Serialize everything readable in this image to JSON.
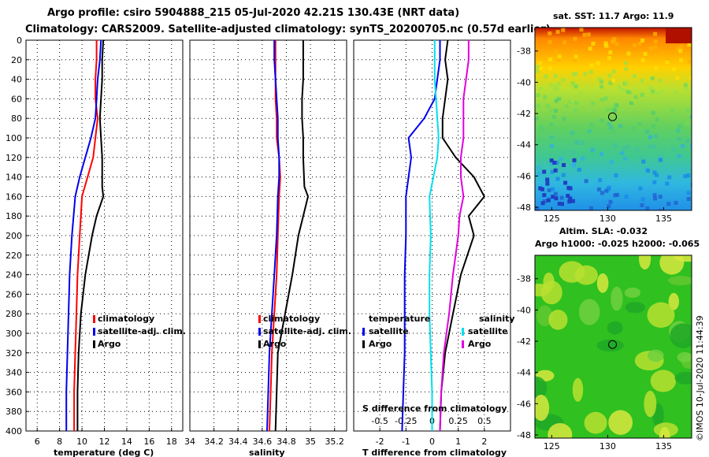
{
  "title": {
    "line1": "Argo profile: csiro 5904888_215 05-Jul-2020 42.21S 130.43E (NRT data)",
    "line2": "Climatology: CARS2009. Satellite-adjusted climatology: synTS_20200705.nc (0.57d earlier)"
  },
  "timestamp": "©IMOS 10-Jul-2020 11:44:39",
  "colors": {
    "climatology": "#ff0000",
    "satellite": "#0000ee",
    "argo": "#000000",
    "sat_salinity": "#00e0ee",
    "argo_salinity": "#e000e0"
  },
  "chart_data": [
    {
      "type": "line",
      "id": "temperature",
      "xlabel": "temperature (deg C)",
      "ylim": [
        0,
        400
      ],
      "xlim": [
        5,
        19
      ],
      "xticks": [
        "6",
        "8",
        "10",
        "12",
        "14",
        "16",
        "18"
      ],
      "xtick_values": [
        6,
        8,
        10,
        12,
        14,
        16,
        18
      ],
      "yticks": [
        "0",
        "20",
        "40",
        "60",
        "80",
        "100",
        "120",
        "140",
        "160",
        "180",
        "200",
        "220",
        "240",
        "260",
        "280",
        "300",
        "320",
        "340",
        "360",
        "380",
        "400"
      ],
      "ytick_values": [
        0,
        20,
        40,
        60,
        80,
        100,
        120,
        140,
        160,
        180,
        200,
        220,
        240,
        260,
        280,
        300,
        320,
        340,
        360,
        380,
        400
      ],
      "legend": [
        "climatology",
        "satellite-adj. clim.",
        "Argo"
      ],
      "series": [
        {
          "name": "climatology",
          "color": "#ff0000",
          "x": [
            11.3,
            11.3,
            11.2,
            11.2,
            11.4,
            11.2,
            11.0,
            10.5,
            10.0,
            9.8,
            9.6,
            9.5,
            9.4,
            9.3,
            9.3
          ],
          "y": [
            0,
            20,
            40,
            60,
            80,
            100,
            120,
            140,
            160,
            200,
            240,
            280,
            320,
            360,
            400
          ]
        },
        {
          "name": "satellite-adj. clim.",
          "color": "#0000ee",
          "x": [
            11.7,
            11.6,
            11.4,
            11.3,
            11.2,
            10.8,
            10.3,
            9.8,
            9.4,
            9.1,
            8.9,
            8.8,
            8.7,
            8.6,
            8.6
          ],
          "y": [
            0,
            20,
            40,
            60,
            80,
            100,
            120,
            140,
            160,
            200,
            240,
            280,
            320,
            360,
            400
          ]
        },
        {
          "name": "Argo",
          "color": "#000000",
          "x": [
            11.9,
            11.8,
            11.8,
            11.7,
            11.6,
            11.7,
            11.8,
            11.8,
            11.9,
            11.3,
            10.9,
            10.3,
            9.9,
            9.7,
            9.6,
            9.6
          ],
          "y": [
            0,
            20,
            40,
            60,
            80,
            100,
            120,
            150,
            160,
            180,
            200,
            240,
            280,
            320,
            360,
            400
          ]
        }
      ]
    },
    {
      "type": "line",
      "id": "salinity",
      "xlabel": "salinity",
      "ylim": [
        0,
        400
      ],
      "xlim": [
        34.0,
        35.3
      ],
      "xticks": [
        "34",
        "34.2",
        "34.4",
        "34.6",
        "34.8",
        "35",
        "35.2"
      ],
      "xtick_values": [
        34.0,
        34.2,
        34.4,
        34.6,
        34.8,
        35.0,
        35.2
      ],
      "legend": [
        "climatology",
        "satellite-adj. clim.",
        "Argo"
      ],
      "series": [
        {
          "name": "climatology",
          "color": "#ff0000",
          "x": [
            34.71,
            34.71,
            34.71,
            34.71,
            34.72,
            34.72,
            34.74,
            34.75,
            34.74,
            34.73,
            34.72,
            34.7,
            34.68,
            34.67,
            34.66
          ],
          "y": [
            0,
            20,
            40,
            60,
            80,
            100,
            120,
            140,
            160,
            200,
            240,
            280,
            320,
            360,
            400
          ]
        },
        {
          "name": "satellite-adj. clim.",
          "color": "#0000ee",
          "x": [
            34.7,
            34.7,
            34.71,
            34.72,
            34.73,
            34.73,
            34.74,
            34.74,
            34.73,
            34.72,
            34.7,
            34.68,
            34.66,
            34.65,
            34.64
          ],
          "y": [
            0,
            20,
            40,
            60,
            80,
            100,
            120,
            140,
            160,
            200,
            240,
            280,
            320,
            360,
            400
          ]
        },
        {
          "name": "Argo",
          "color": "#000000",
          "x": [
            34.94,
            34.94,
            34.94,
            34.93,
            34.93,
            34.94,
            34.94,
            34.95,
            34.98,
            34.94,
            34.9,
            34.85,
            34.79,
            34.73,
            34.72,
            34.71
          ],
          "y": [
            0,
            20,
            40,
            60,
            80,
            100,
            120,
            150,
            160,
            180,
            200,
            240,
            280,
            320,
            360,
            400
          ]
        }
      ]
    },
    {
      "type": "line",
      "id": "difference",
      "xlabel": "T difference from climatology",
      "xlabel_top": "S difference from climatology",
      "ylim": [
        0,
        400
      ],
      "xlim": [
        -3,
        3
      ],
      "xticks": [
        "-2",
        "-1",
        "0",
        "1",
        "2"
      ],
      "xtick_values": [
        -2,
        -1,
        0,
        1,
        2
      ],
      "xticks_top": [
        "-0.5",
        "-0.25",
        "0",
        "0.25",
        "0.5"
      ],
      "xtick_top_values": [
        -2,
        -1,
        0,
        1,
        2
      ],
      "legend_left_title": "temperature",
      "legend_right_title": "salinity",
      "legend_left": [
        "satellite",
        "Argo"
      ],
      "legend_right": [
        "satellite",
        "Argo"
      ],
      "series": [
        {
          "name": "temperature satellite",
          "color": "#0000ee",
          "x": [
            0.3,
            0.3,
            0.2,
            0.1,
            -0.3,
            -0.9,
            -0.8,
            -0.9,
            -1.0,
            -1.0,
            -1.05,
            -1.05,
            -1.05,
            -1.1,
            -1.15
          ],
          "y": [
            0,
            20,
            40,
            60,
            80,
            100,
            120,
            140,
            160,
            200,
            240,
            280,
            320,
            360,
            400
          ]
        },
        {
          "name": "temperature Argo",
          "color": "#000000",
          "x": [
            0.6,
            0.5,
            0.6,
            0.5,
            0.4,
            0.4,
            0.9,
            1.6,
            2.0,
            1.4,
            1.6,
            1.1,
            0.8,
            0.5,
            0.35,
            0.3
          ],
          "y": [
            0,
            20,
            40,
            60,
            80,
            100,
            120,
            140,
            160,
            180,
            200,
            240,
            280,
            320,
            360,
            400
          ]
        },
        {
          "name": "salinity satellite",
          "color": "#00e0ee",
          "x": [
            0.1,
            0.1,
            0.1,
            0.15,
            0.2,
            0.25,
            0.2,
            0.05,
            -0.1,
            -0.05,
            -0.1,
            -0.1,
            -0.05,
            0.0,
            0.0
          ],
          "y": [
            0,
            20,
            40,
            60,
            80,
            100,
            120,
            140,
            160,
            200,
            240,
            280,
            320,
            360,
            400
          ]
        },
        {
          "name": "salinity Argo",
          "color": "#e000e0",
          "x": [
            1.4,
            1.4,
            1.3,
            1.2,
            1.2,
            1.2,
            1.1,
            1.1,
            1.2,
            1.05,
            1.0,
            0.8,
            0.65,
            0.45,
            0.35,
            0.3
          ],
          "y": [
            0,
            20,
            40,
            60,
            80,
            100,
            120,
            140,
            160,
            180,
            200,
            240,
            280,
            320,
            360,
            400
          ]
        }
      ]
    },
    {
      "type": "heatmap",
      "id": "sst_map",
      "title": "sat. SST: 11.7 Argo: 11.9",
      "xticks": [
        "125",
        "130",
        "135"
      ],
      "xtick_values": [
        125,
        130,
        135
      ],
      "yticks": [
        "-38",
        "-40",
        "-42",
        "-44",
        "-46",
        "-48"
      ],
      "ytick_values": [
        -38,
        -40,
        -42,
        -44,
        -46,
        -48
      ],
      "xlim": [
        123.5,
        137.5
      ],
      "ylim": [
        -48.2,
        -36.5
      ],
      "marker": [
        130.43,
        -42.21
      ]
    },
    {
      "type": "heatmap",
      "id": "sla_map",
      "title": "Altim. SLA: -0.032",
      "subtitle": "Argo h1000: -0.025 h2000: -0.065",
      "xticks": [
        "125",
        "130",
        "135"
      ],
      "xtick_values": [
        125,
        130,
        135
      ],
      "yticks": [
        "-38",
        "-40",
        "-42",
        "-44",
        "-46",
        "-48"
      ],
      "ytick_values": [
        -38,
        -40,
        -42,
        -44,
        -46,
        -48
      ],
      "xlim": [
        123.5,
        137.5
      ],
      "ylim": [
        -48.2,
        -36.5
      ],
      "marker": [
        130.43,
        -42.21
      ]
    }
  ]
}
